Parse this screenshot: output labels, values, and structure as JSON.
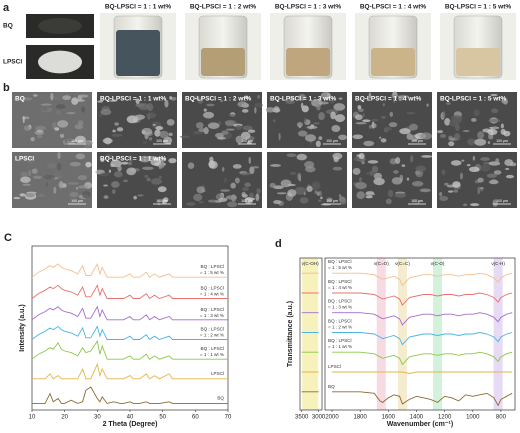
{
  "panel_a": {
    "label": "a",
    "photos": [
      "BQ",
      "LPSCl"
    ],
    "vials": [
      "BQ-LPSCl = 1 : 1 wt%",
      "BQ-LPSCl = 1 : 2 wt%",
      "BQ-LPSCl = 1 : 3 wt%",
      "BQ-LPSCl = 1 : 4 wt%",
      "BQ-LPSCl = 1 : 5 wt%"
    ]
  },
  "panel_b": {
    "label": "b",
    "scale_bar": "100 μm",
    "rows": [
      [
        "BQ",
        "BQ-LPSCl = 1 : 1 wt%",
        "BQ-LPSCl = 1 : 2 wt%",
        "BQ-LPSCl = 1 : 3 wt%",
        "BQ-LPSCl = 1 : 4 wt%",
        "BQ-LPSCl = 1 : 5 wt%"
      ],
      [
        "LPSCl",
        "BQ-LPSCl = 1 : 1 wt%"
      ]
    ]
  },
  "chart_data": [
    {
      "type": "line",
      "panel_label": "C",
      "xlabel": "2 Theta (Degree)",
      "ylabel": "Intensity (a.u.)",
      "xlim": [
        10,
        70
      ],
      "xticks": [
        10,
        20,
        30,
        40,
        50,
        60,
        70
      ],
      "ylim": [
        0,
        100
      ],
      "x": [
        10,
        12,
        14,
        15.5,
        16.5,
        18,
        19,
        20,
        22,
        24,
        25.5,
        26.5,
        28,
        30,
        30.8,
        31.5,
        33,
        35,
        37,
        38,
        40,
        41,
        43,
        45,
        46,
        47.5,
        49,
        52,
        53,
        55,
        58,
        60,
        62,
        65,
        68,
        70
      ],
      "series": [
        {
          "name": "BQ : LPSCl = 1 : 5 wt %",
          "color": "#f2c08e",
          "values": [
            81,
            84,
            86,
            88,
            87,
            89,
            87,
            86,
            85,
            83,
            88,
            82,
            82,
            89,
            83,
            87,
            81,
            81,
            81,
            81,
            83,
            81,
            81,
            84,
            81,
            83,
            81,
            83,
            81,
            81,
            81,
            81,
            81,
            81,
            81,
            81
          ]
        },
        {
          "name": "BQ : LPSCl = 1 : 4 wt %",
          "color": "#e8716d",
          "values": [
            68,
            71,
            73,
            75,
            74,
            76,
            74,
            73,
            72,
            70,
            75,
            69,
            69,
            76,
            70,
            74,
            68,
            68,
            68,
            68,
            70,
            68,
            68,
            71,
            68,
            70,
            68,
            70,
            68,
            68,
            68,
            68,
            68,
            68,
            68,
            68
          ]
        },
        {
          "name": "BQ : LPSCl = 1 : 3 wt %",
          "color": "#a46ed0",
          "values": [
            55,
            58,
            60,
            62,
            61,
            63,
            61,
            60,
            59,
            57,
            62,
            56,
            56,
            63,
            57,
            61,
            55,
            55,
            55,
            55,
            57,
            55,
            55,
            58,
            55,
            57,
            55,
            57,
            55,
            55,
            55,
            55,
            55,
            55,
            55,
            55
          ]
        },
        {
          "name": "BQ : LPSCl = 1 : 2 wt %",
          "color": "#4db3e6",
          "values": [
            43,
            46,
            48,
            50,
            49,
            51,
            49,
            48,
            47,
            45,
            50,
            44,
            44,
            51,
            45,
            49,
            43,
            43,
            43,
            43,
            45,
            43,
            43,
            46,
            43,
            45,
            43,
            45,
            43,
            43,
            43,
            43,
            43,
            43,
            43,
            43
          ]
        },
        {
          "name": "BQ : LPSCl = 1 : 1 wt %",
          "color": "#8cc84a",
          "values": [
            31,
            34,
            36,
            38,
            37,
            41,
            37,
            36,
            35,
            33,
            38,
            35,
            36,
            42,
            34,
            39,
            31,
            31,
            31,
            31,
            33,
            31,
            31,
            34,
            31,
            33,
            31,
            33,
            31,
            31,
            31,
            31,
            31,
            31,
            31,
            31
          ]
        },
        {
          "name": "LPSCl",
          "color": "#e3b54a",
          "values": [
            19,
            19,
            19,
            22,
            19,
            21,
            19,
            19,
            19,
            19,
            25,
            19,
            19,
            28,
            21,
            25,
            19,
            19,
            19,
            19,
            21,
            19,
            19,
            22,
            19,
            21,
            19,
            22,
            19,
            19,
            19,
            19,
            19,
            19,
            19,
            19
          ]
        },
        {
          "name": "BQ",
          "color": "#8b6a2e",
          "values": [
            4,
            4,
            4,
            10,
            5,
            7,
            4,
            4,
            6,
            4,
            5,
            12,
            14,
            7,
            5,
            8,
            4,
            5,
            4,
            4,
            5,
            4,
            4,
            5,
            4,
            4,
            4,
            5,
            4,
            4,
            4,
            4,
            4,
            4,
            4,
            4
          ]
        }
      ]
    },
    {
      "type": "line",
      "panel_label": "d",
      "xlabel": "Wavenumber (cm⁻¹)",
      "ylabel": "Transmittance (a.u.)",
      "xlim": [
        3550,
        700
      ],
      "xbreak": [
        2900,
        2050
      ],
      "xticks": [
        3500,
        3000,
        2000,
        1800,
        1600,
        1400,
        1200,
        1000,
        800
      ],
      "ylim": [
        0,
        100
      ],
      "bands": [
        {
          "text": "ν(C-OH)",
          "x": 3250,
          "color": "#f6efb0"
        },
        {
          "text": "ν(C=O)",
          "x": 1650,
          "color": "#f7d3de"
        },
        {
          "text": "ν(C=C)",
          "x": 1500,
          "color": "#f3e9c8"
        },
        {
          "text": "ν(C-O)",
          "x": 1250,
          "color": "#cdeed6"
        },
        {
          "text": "ν(C-H)",
          "x": 820,
          "color": "#e3d3f2"
        }
      ],
      "x": [
        3500,
        3400,
        3200,
        3000,
        2000,
        1900,
        1800,
        1700,
        1660,
        1640,
        1600,
        1560,
        1520,
        1500,
        1450,
        1400,
        1350,
        1300,
        1250,
        1200,
        1150,
        1100,
        1050,
        1000,
        950,
        900,
        850,
        820,
        800,
        760,
        720
      ],
      "series": [
        {
          "name": "BQ : LPSCl = 1 : 5 wt %",
          "color": "#f2c08e",
          "values": [
            90,
            90,
            90,
            90,
            90,
            90,
            90,
            89,
            87,
            86,
            87,
            88,
            86,
            82,
            87,
            88,
            89,
            89,
            88,
            89,
            89,
            88,
            89,
            89,
            90,
            89,
            87,
            84,
            87,
            89,
            90
          ]
        },
        {
          "name": "BQ : LPSCl = 1 : 4 wt %",
          "color": "#e8716d",
          "values": [
            77,
            77,
            77,
            77,
            77,
            77,
            77,
            76,
            74,
            73,
            74,
            75,
            73,
            69,
            74,
            75,
            76,
            76,
            75,
            76,
            76,
            75,
            76,
            76,
            77,
            76,
            74,
            71,
            74,
            76,
            77
          ]
        },
        {
          "name": "BQ : LPSCl = 1 : 3 wt %",
          "color": "#a46ed0",
          "values": [
            64,
            64,
            64,
            64,
            64,
            64,
            64,
            63,
            61,
            60,
            61,
            62,
            60,
            56,
            61,
            62,
            63,
            63,
            62,
            63,
            63,
            62,
            63,
            63,
            64,
            63,
            61,
            58,
            61,
            63,
            64
          ]
        },
        {
          "name": "BQ : LPSCl = 1 : 2 wt %",
          "color": "#4db3e6",
          "values": [
            51,
            51,
            51,
            51,
            51,
            51,
            51,
            50,
            48,
            47,
            48,
            49,
            47,
            43,
            48,
            49,
            50,
            50,
            49,
            50,
            50,
            49,
            50,
            50,
            51,
            50,
            48,
            45,
            48,
            50,
            51
          ]
        },
        {
          "name": "BQ : LPSCl = 1 : 1 wt %",
          "color": "#8cc84a",
          "values": [
            38,
            38,
            38,
            38,
            38,
            38,
            38,
            37,
            35,
            34,
            35,
            36,
            34,
            30,
            35,
            36,
            37,
            37,
            36,
            37,
            37,
            36,
            37,
            37,
            38,
            37,
            35,
            32,
            35,
            37,
            38
          ]
        },
        {
          "name": "LPSCl",
          "color": "#e3b54a",
          "values": [
            25,
            25,
            25,
            25,
            25,
            25,
            25,
            25,
            25,
            25,
            25,
            25,
            25,
            25,
            24,
            25,
            25,
            25,
            25,
            25,
            25,
            25,
            25,
            25,
            25,
            25,
            25,
            25,
            25,
            25,
            25
          ]
        },
        {
          "name": "BQ",
          "color": "#8b6a2e",
          "values": [
            12,
            12,
            12,
            12,
            12,
            12,
            12,
            11,
            6,
            5,
            8,
            10,
            9,
            4,
            7,
            9,
            8,
            7,
            5,
            9,
            8,
            6,
            10,
            9,
            10,
            11,
            8,
            3,
            7,
            9,
            11
          ]
        }
      ]
    }
  ]
}
